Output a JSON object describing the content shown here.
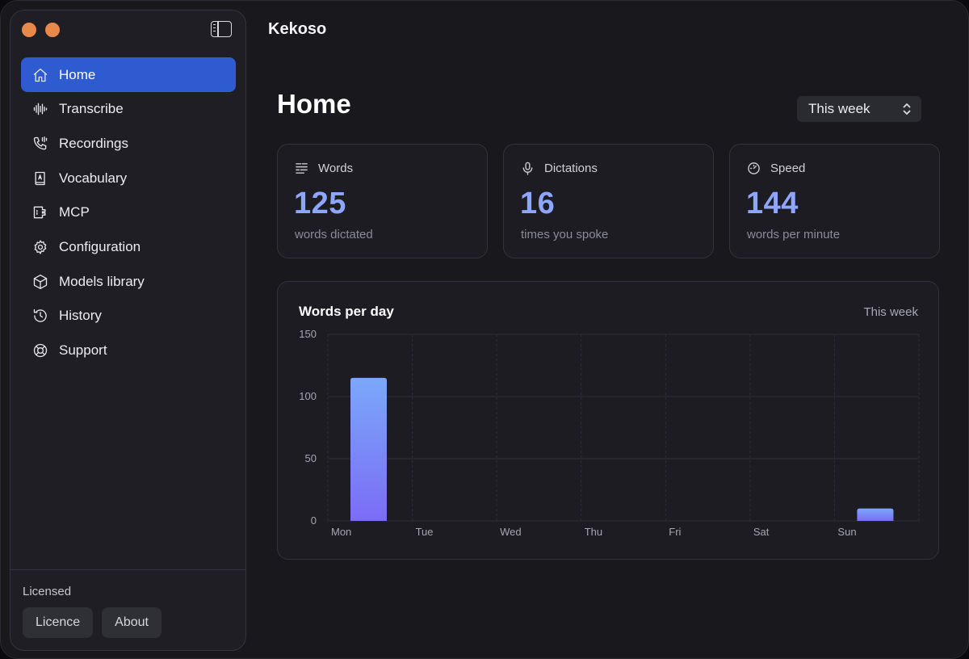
{
  "window": {
    "app_title": "Kekoso"
  },
  "sidebar": {
    "items": [
      {
        "label": "Home",
        "icon": "home-icon",
        "active": true
      },
      {
        "label": "Transcribe",
        "icon": "waveform-icon"
      },
      {
        "label": "Recordings",
        "icon": "phone-recording-icon"
      },
      {
        "label": "Vocabulary",
        "icon": "book-icon"
      },
      {
        "label": "MCP",
        "icon": "plug-icon"
      },
      {
        "label": "Configuration",
        "icon": "gear-icon"
      },
      {
        "label": "Models library",
        "icon": "cube-icon"
      },
      {
        "label": "History",
        "icon": "history-icon"
      },
      {
        "label": "Support",
        "icon": "lifebuoy-icon"
      }
    ],
    "license_status": "Licensed",
    "licence_button": "Licence",
    "about_button": "About"
  },
  "main": {
    "page_title": "Home",
    "period_select": "This week",
    "stats": [
      {
        "label": "Words",
        "value": "125",
        "sub": "words dictated",
        "icon": "text-lines-icon"
      },
      {
        "label": "Dictations",
        "value": "16",
        "sub": "times you spoke",
        "icon": "microphone-icon"
      },
      {
        "label": "Speed",
        "value": "144",
        "sub": "words per minute",
        "icon": "speedometer-icon"
      }
    ],
    "chart_card": {
      "title": "Words per day",
      "period": "This week"
    }
  },
  "colors": {
    "accent": "#2f5bd0",
    "stat_value": "#8fa6ff",
    "bar_top": "#7aa8f8",
    "bar_bottom": "#7b6cf6"
  },
  "chart_data": {
    "type": "bar",
    "title": "Words per day",
    "categories": [
      "Mon",
      "Tue",
      "Wed",
      "Thu",
      "Fri",
      "Sat",
      "Sun"
    ],
    "values": [
      115,
      0,
      0,
      0,
      0,
      0,
      10
    ],
    "yticks": [
      0,
      50,
      100,
      150
    ],
    "ylim": [
      0,
      150
    ],
    "grid": true,
    "legend": false
  }
}
